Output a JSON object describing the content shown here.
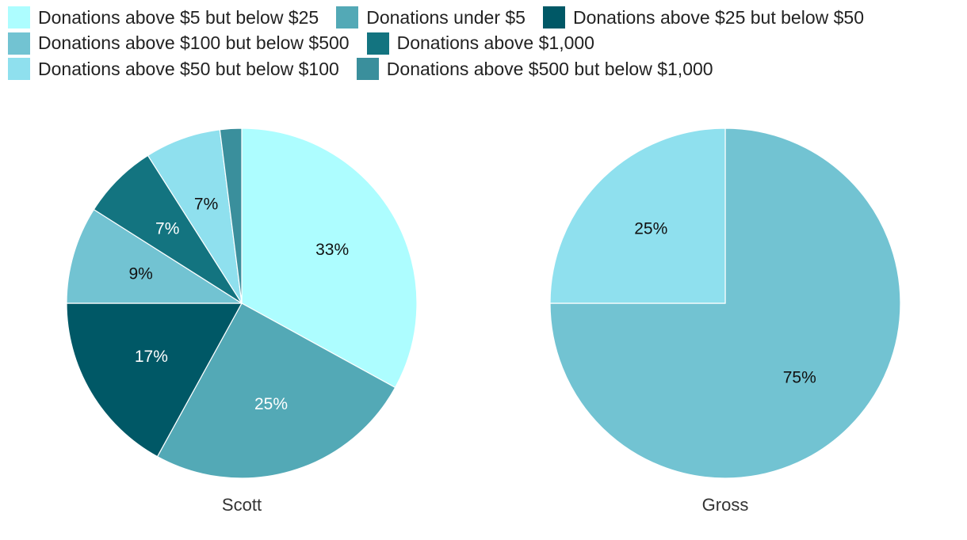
{
  "legend": [
    {
      "label": "Donations above $5 but below $25",
      "color": "#adfdff"
    },
    {
      "label": "Donations under $5",
      "color": "#53a9b6"
    },
    {
      "label": "Donations above $25 but below $50",
      "color": "#005866"
    },
    {
      "label": "Donations above $100 but below $500",
      "color": "#72c3d2"
    },
    {
      "label": "Donations above $1,000",
      "color": "#137480"
    },
    {
      "label": "Donations above $50 but below $100",
      "color": "#8fe0ee"
    },
    {
      "label": "Donations above $500 but below $1,000",
      "color": "#3a8f9c"
    }
  ],
  "chart_data": [
    {
      "type": "pie",
      "title": "Scott",
      "slices": [
        {
          "category": "Donations above $5 but below $25",
          "value": 33,
          "label": "33%"
        },
        {
          "category": "Donations under $5",
          "value": 25,
          "label": "25%"
        },
        {
          "category": "Donations above $25 but below $50",
          "value": 17,
          "label": "17%"
        },
        {
          "category": "Donations above $100 but below $500",
          "value": 9,
          "label": "9%"
        },
        {
          "category": "Donations above $1,000",
          "value": 7,
          "label": "7%"
        },
        {
          "category": "Donations above $50 but below $100",
          "value": 7,
          "label": "7%"
        },
        {
          "category": "Donations above $500 but below $1,000",
          "value": 2,
          "label": ""
        }
      ]
    },
    {
      "type": "pie",
      "title": "Gross",
      "slices": [
        {
          "category": "Donations above $100 but below $500",
          "value": 75,
          "label": "75%"
        },
        {
          "category": "Donations above $50 but below $100",
          "value": 25,
          "label": "25%"
        }
      ]
    }
  ]
}
